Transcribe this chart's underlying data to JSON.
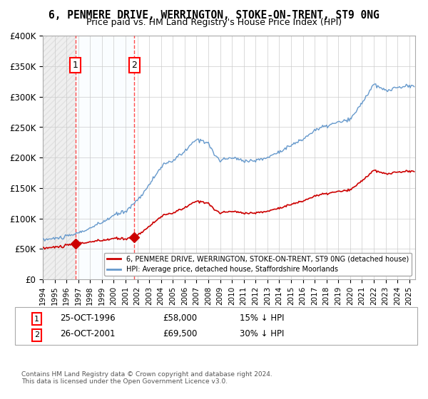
{
  "title": "6, PENMERE DRIVE, WERRINGTON, STOKE-ON-TRENT, ST9 0NG",
  "subtitle": "Price paid vs. HM Land Registry's House Price Index (HPI)",
  "sale1_price": 58000,
  "sale1_label": "25-OCT-1996",
  "sale1_pct": "15% ↓ HPI",
  "sale2_price": 69500,
  "sale2_label": "26-OCT-2001",
  "sale2_pct": "30% ↓ HPI",
  "legend1": "6, PENMERE DRIVE, WERRINGTON, STOKE-ON-TRENT, ST9 0NG (detached house)",
  "legend2": "HPI: Average price, detached house, Staffordshire Moorlands",
  "note": "Contains HM Land Registry data © Crown copyright and database right 2024.\nThis data is licensed under the Open Government Licence v3.0.",
  "sale_color": "#cc0000",
  "hpi_color": "#6699cc",
  "ylim": [
    0,
    400000
  ],
  "xlim_start": 1994.0,
  "xlim_end": 2025.5
}
